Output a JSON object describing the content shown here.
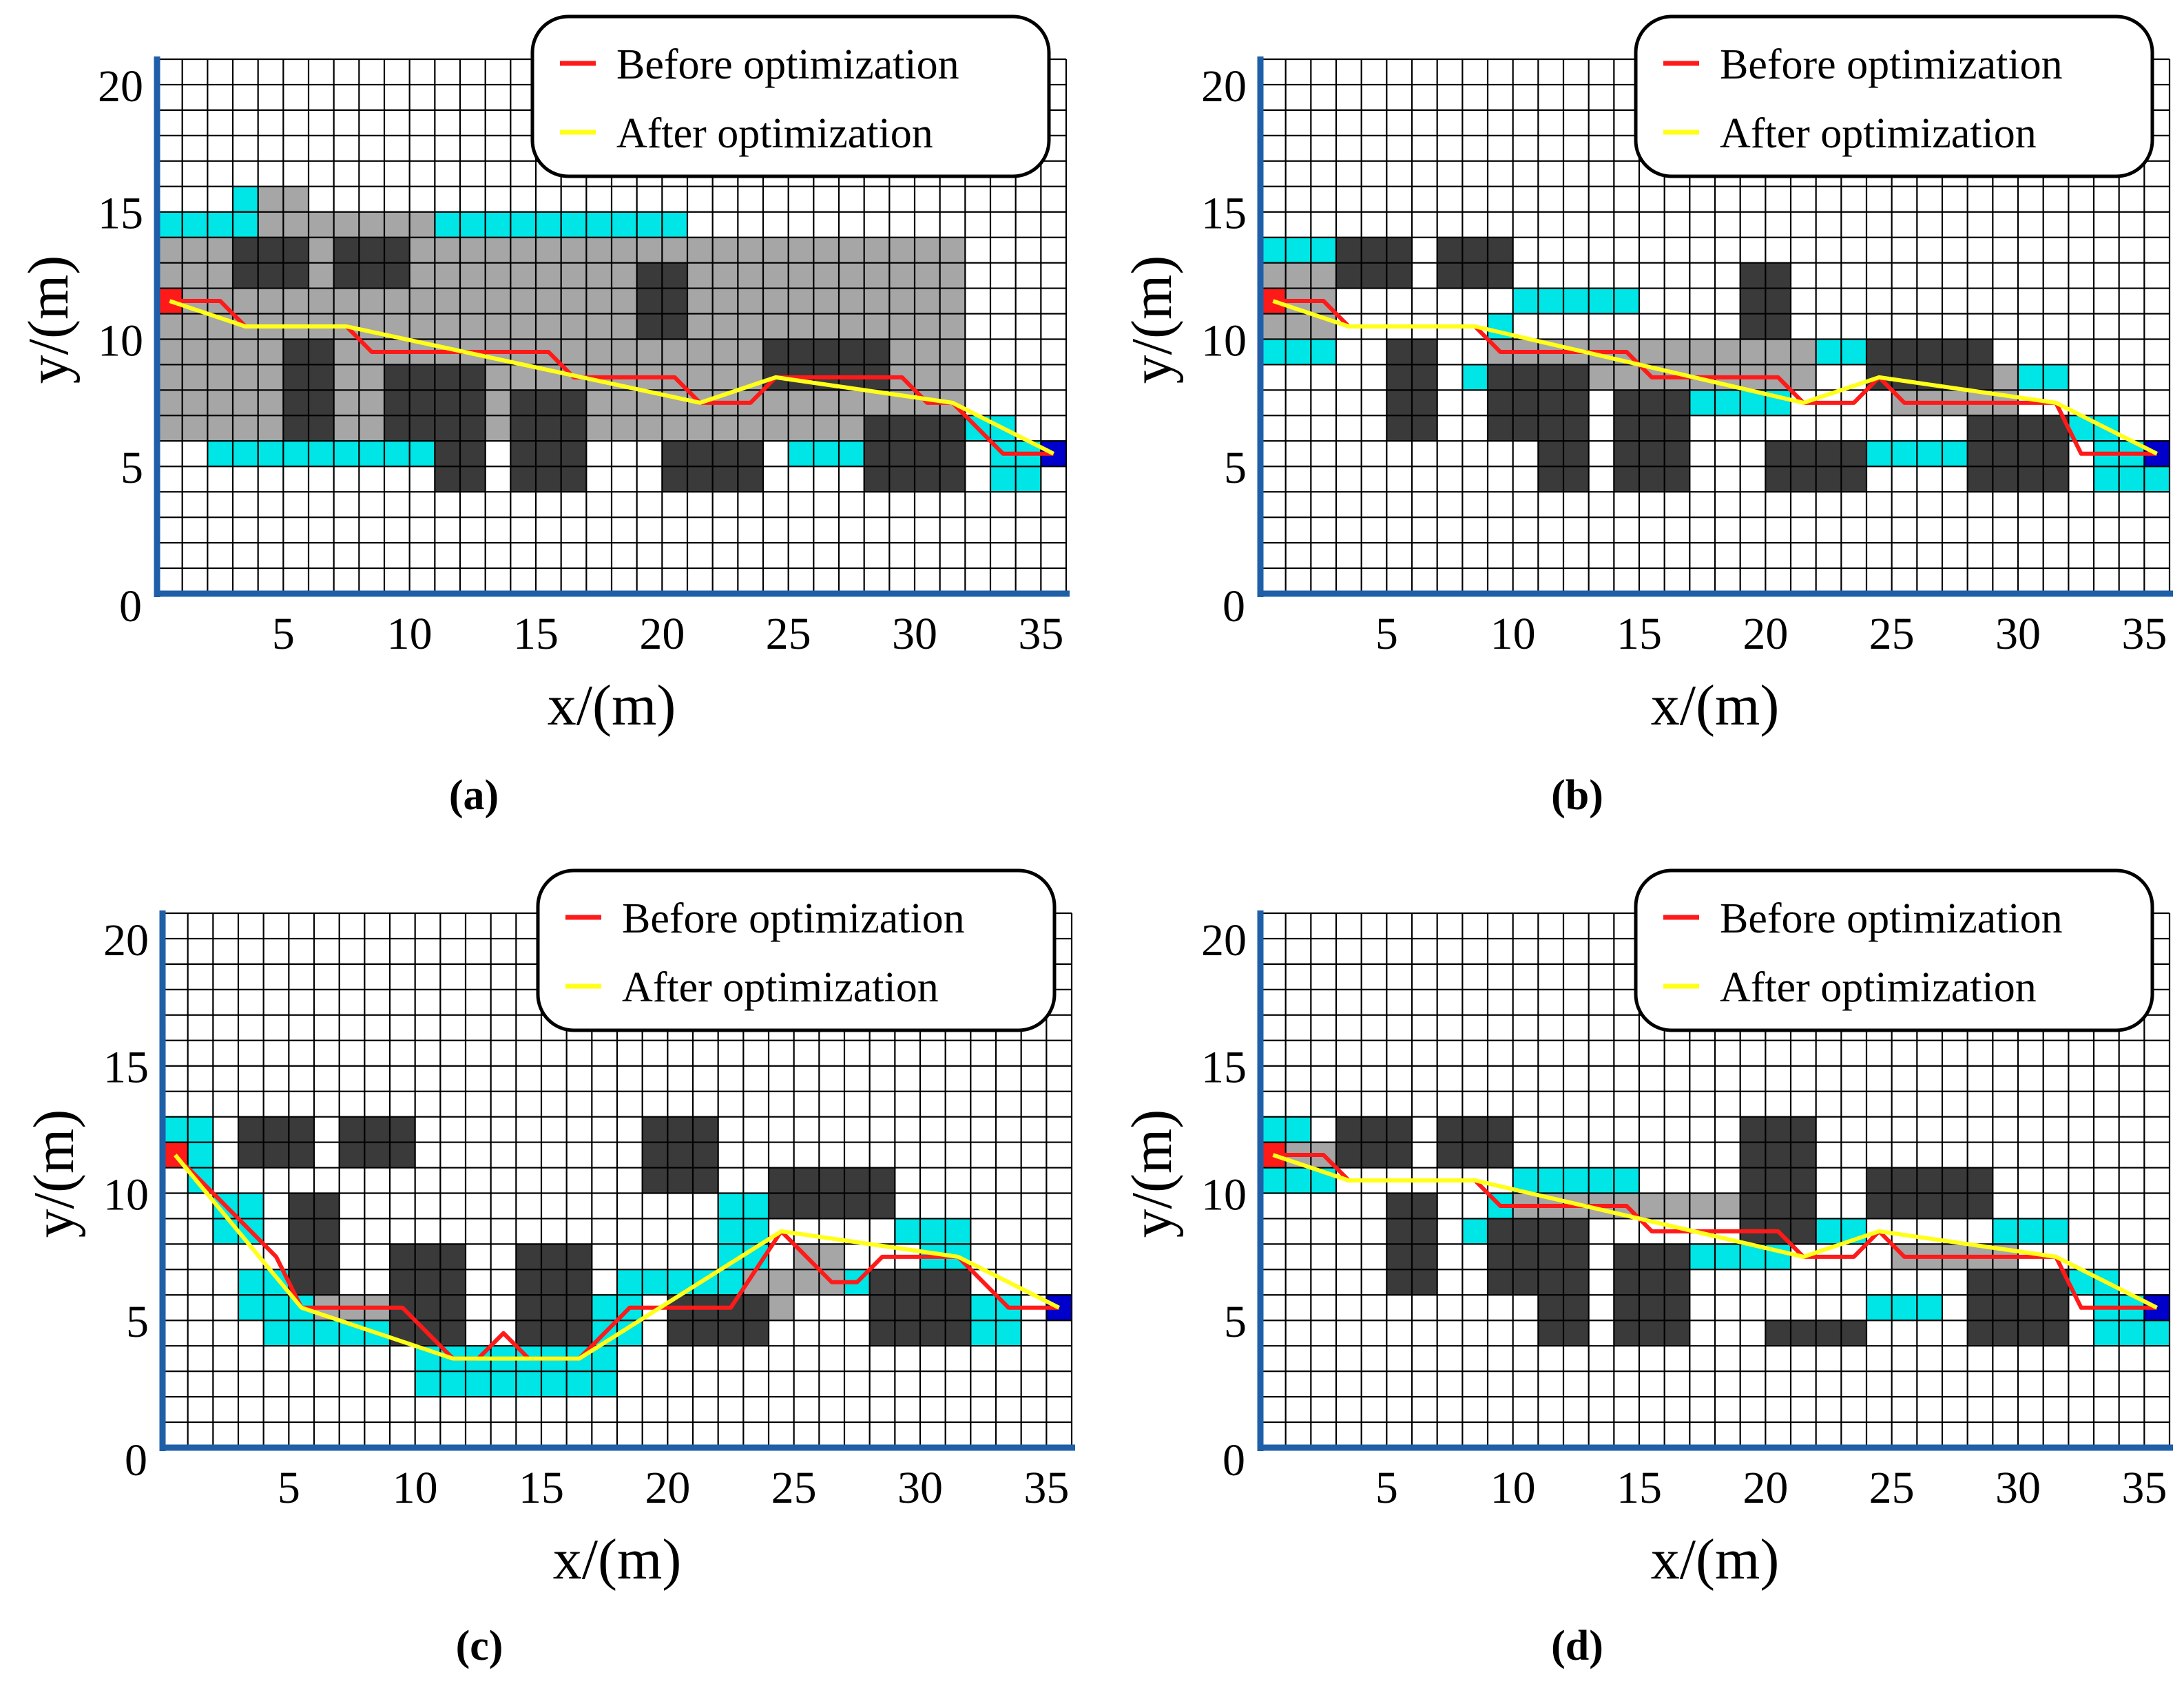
{
  "legend": {
    "before": "Before optimization",
    "after": "After optimization"
  },
  "colors": {
    "obstacle": "#3a3a3a",
    "explored": "#a6a6a6",
    "frontier": "#00e5e5",
    "grid": "#000000",
    "axis": "#1f5fa8",
    "before": "#ff1a1a",
    "after": "#ffff1a",
    "start": "#ff1a1a",
    "goal": "#0000cc"
  },
  "chart_data": [
    {
      "type": "grid-path",
      "label": "(a)",
      "xlabel": "x/(m)",
      "ylabel": "y/(m)",
      "xlim": [
        0,
        36
      ],
      "ylim": [
        0,
        21
      ],
      "xticks": [
        5,
        10,
        15,
        20,
        25,
        30,
        35
      ],
      "yticks": [
        5,
        10,
        15,
        20
      ],
      "origin_label": "0",
      "obstacles": [
        [
          3,
          12,
          3,
          2
        ],
        [
          7,
          12,
          3,
          2
        ],
        [
          5,
          6,
          2,
          4
        ],
        [
          9,
          6,
          4,
          3
        ],
        [
          11,
          4,
          2,
          2
        ],
        [
          14,
          4,
          3,
          4
        ],
        [
          19,
          10,
          2,
          3
        ],
        [
          20,
          4,
          4,
          2
        ],
        [
          24,
          8,
          5,
          2
        ],
        [
          28,
          4,
          4,
          3
        ]
      ],
      "explored": [
        [
          0,
          6,
          32,
          8
        ],
        [
          4,
          14,
          7,
          1
        ],
        [
          4,
          15,
          2,
          1
        ]
      ],
      "frontier": [
        [
          0,
          14,
          1,
          1
        ],
        [
          1,
          14,
          20,
          1
        ],
        [
          3,
          15,
          3,
          1
        ],
        [
          2,
          5,
          10,
          1
        ],
        [
          0,
          7,
          2,
          1
        ],
        [
          21,
          12,
          3,
          1
        ],
        [
          23,
          9,
          2,
          3
        ],
        [
          29,
          9,
          3,
          1
        ],
        [
          30,
          7,
          2,
          2
        ],
        [
          32,
          6,
          2,
          1
        ],
        [
          33,
          4,
          2,
          2
        ],
        [
          25,
          5,
          3,
          1
        ]
      ],
      "start": [
        0,
        11.5
      ],
      "goal": [
        35.5,
        5.5
      ],
      "before": [
        [
          0.5,
          11.5
        ],
        [
          2.5,
          11.5
        ],
        [
          3.5,
          10.5
        ],
        [
          7.5,
          10.5
        ],
        [
          8.5,
          9.5
        ],
        [
          15.5,
          9.5
        ],
        [
          16.5,
          8.5
        ],
        [
          20.5,
          8.5
        ],
        [
          21.5,
          7.5
        ],
        [
          23.5,
          7.5
        ],
        [
          24.5,
          8.5
        ],
        [
          29.5,
          8.5
        ],
        [
          30.5,
          7.5
        ],
        [
          31.5,
          7.5
        ],
        [
          33.5,
          5.5
        ],
        [
          35.5,
          5.5
        ]
      ],
      "after": [
        [
          0.5,
          11.5
        ],
        [
          3.5,
          10.5
        ],
        [
          7.5,
          10.5
        ],
        [
          21.5,
          7.5
        ],
        [
          24.5,
          8.5
        ],
        [
          31.5,
          7.5
        ],
        [
          35.5,
          5.5
        ]
      ]
    },
    {
      "type": "grid-path",
      "label": "(b)",
      "xlabel": "x/(m)",
      "ylabel": "y/(m)",
      "xlim": [
        0,
        36
      ],
      "ylim": [
        0,
        21
      ],
      "xticks": [
        5,
        10,
        15,
        20,
        25,
        30,
        35
      ],
      "yticks": [
        5,
        10,
        15,
        20
      ],
      "origin_label": "0",
      "obstacles": [
        [
          3,
          12,
          3,
          2
        ],
        [
          7,
          12,
          3,
          2
        ],
        [
          5,
          6,
          2,
          4
        ],
        [
          9,
          6,
          4,
          3
        ],
        [
          11,
          4,
          2,
          2
        ],
        [
          14,
          4,
          3,
          4
        ],
        [
          19,
          10,
          2,
          3
        ],
        [
          20,
          4,
          4,
          2
        ],
        [
          24,
          8,
          5,
          2
        ],
        [
          28,
          4,
          4,
          3
        ]
      ],
      "explored": [
        [
          0,
          10,
          3,
          3
        ],
        [
          9,
          8,
          13,
          2
        ],
        [
          25,
          7,
          5,
          2
        ]
      ],
      "frontier": [
        [
          0,
          13,
          3,
          1
        ],
        [
          0,
          9,
          3,
          1
        ],
        [
          10,
          11,
          5,
          1
        ],
        [
          9,
          10,
          1,
          1
        ],
        [
          8,
          8,
          1,
          1
        ],
        [
          17,
          7,
          4,
          1
        ],
        [
          22,
          9,
          2,
          1
        ],
        [
          23,
          5,
          2,
          1
        ],
        [
          29,
          8,
          3,
          1
        ],
        [
          32,
          6,
          2,
          1
        ],
        [
          33,
          4,
          3,
          2
        ],
        [
          25,
          5,
          3,
          1
        ]
      ],
      "start": [
        0,
        11.5
      ],
      "goal": [
        35.5,
        5.5
      ],
      "before": [
        [
          0.5,
          11.5
        ],
        [
          2.5,
          11.5
        ],
        [
          3.5,
          10.5
        ],
        [
          8.5,
          10.5
        ],
        [
          9.5,
          9.5
        ],
        [
          14.5,
          9.5
        ],
        [
          15.5,
          8.5
        ],
        [
          20.5,
          8.5
        ],
        [
          21.5,
          7.5
        ],
        [
          23.5,
          7.5
        ],
        [
          24.5,
          8.5
        ],
        [
          25.5,
          7.5
        ],
        [
          31.5,
          7.5
        ],
        [
          32.5,
          5.5
        ],
        [
          35.5,
          5.5
        ]
      ],
      "after": [
        [
          0.5,
          11.5
        ],
        [
          3.5,
          10.5
        ],
        [
          8.5,
          10.5
        ],
        [
          21.5,
          7.5
        ],
        [
          24.5,
          8.5
        ],
        [
          31.5,
          7.5
        ],
        [
          35.5,
          5.5
        ]
      ]
    },
    {
      "type": "grid-path",
      "label": "(c)",
      "xlabel": "x/(m)",
      "ylabel": "y/(m)",
      "xlim": [
        0,
        36
      ],
      "ylim": [
        0,
        21
      ],
      "xticks": [
        5,
        10,
        15,
        20,
        25,
        30,
        35
      ],
      "yticks": [
        5,
        10,
        15,
        20
      ],
      "origin_label": "0",
      "obstacles": [
        [
          3,
          11,
          3,
          2
        ],
        [
          7,
          11,
          3,
          2
        ],
        [
          5,
          6,
          2,
          4
        ],
        [
          9,
          4,
          3,
          4
        ],
        [
          14,
          4,
          3,
          4
        ],
        [
          19,
          10,
          3,
          3
        ],
        [
          20,
          4,
          4,
          2
        ],
        [
          24,
          9,
          5,
          2
        ],
        [
          28,
          4,
          4,
          3
        ]
      ],
      "explored": [
        [
          6,
          5,
          4,
          1
        ],
        [
          23,
          5,
          2,
          2
        ],
        [
          25,
          6,
          2,
          2
        ]
      ],
      "frontier": [
        [
          0,
          12,
          2,
          1
        ],
        [
          1,
          10,
          1,
          2
        ],
        [
          2,
          8,
          2,
          2
        ],
        [
          3,
          5,
          3,
          2
        ],
        [
          4,
          4,
          7,
          1
        ],
        [
          10,
          2,
          8,
          2
        ],
        [
          17,
          4,
          2,
          2
        ],
        [
          18,
          6,
          6,
          1
        ],
        [
          22,
          7,
          2,
          3
        ],
        [
          25,
          6,
          3,
          1
        ],
        [
          29,
          8,
          3,
          1
        ],
        [
          30,
          6,
          2,
          2
        ],
        [
          32,
          4,
          2,
          2
        ]
      ],
      "start": [
        0,
        11.5
      ],
      "goal": [
        35.5,
        5.5
      ],
      "before": [
        [
          0.5,
          11.5
        ],
        [
          4.5,
          7.5
        ],
        [
          5.5,
          5.5
        ],
        [
          9.5,
          5.5
        ],
        [
          11.5,
          3.5
        ],
        [
          12.5,
          3.5
        ],
        [
          13.5,
          4.5
        ],
        [
          14.5,
          3.5
        ],
        [
          16.5,
          3.5
        ],
        [
          18.5,
          5.5
        ],
        [
          22.5,
          5.5
        ],
        [
          24.5,
          8.5
        ],
        [
          25.5,
          7.5
        ],
        [
          26.5,
          6.5
        ],
        [
          27.5,
          6.5
        ],
        [
          28.5,
          7.5
        ],
        [
          31.5,
          7.5
        ],
        [
          33.5,
          5.5
        ],
        [
          35.5,
          5.5
        ]
      ],
      "after": [
        [
          0.5,
          11.5
        ],
        [
          5.5,
          5.5
        ],
        [
          11.5,
          3.5
        ],
        [
          16.5,
          3.5
        ],
        [
          24.5,
          8.5
        ],
        [
          31.5,
          7.5
        ],
        [
          35.5,
          5.5
        ]
      ]
    },
    {
      "type": "grid-path",
      "label": "(d)",
      "xlabel": "x/(m)",
      "ylabel": "y/(m)",
      "xlim": [
        0,
        36
      ],
      "ylim": [
        0,
        21
      ],
      "xticks": [
        5,
        10,
        15,
        20,
        25,
        30,
        35
      ],
      "yticks": [
        5,
        10,
        15,
        20
      ],
      "origin_label": "0",
      "obstacles": [
        [
          3,
          11,
          3,
          2
        ],
        [
          7,
          11,
          3,
          2
        ],
        [
          5,
          6,
          2,
          4
        ],
        [
          9,
          6,
          4,
          3
        ],
        [
          11,
          4,
          2,
          2
        ],
        [
          14,
          4,
          3,
          4
        ],
        [
          19,
          8,
          3,
          5
        ],
        [
          20,
          4,
          4,
          1
        ],
        [
          24,
          9,
          5,
          2
        ],
        [
          28,
          4,
          4,
          3
        ]
      ],
      "explored": [
        [
          0,
          11,
          3,
          1
        ],
        [
          10,
          9,
          12,
          1
        ],
        [
          25,
          7,
          5,
          1
        ]
      ],
      "frontier": [
        [
          0,
          12,
          2,
          1
        ],
        [
          0,
          10,
          3,
          1
        ],
        [
          9,
          9,
          1,
          1
        ],
        [
          8,
          8,
          1,
          1
        ],
        [
          10,
          10,
          5,
          1
        ],
        [
          15,
          9,
          4,
          1
        ],
        [
          17,
          7,
          4,
          1
        ],
        [
          22,
          8,
          2,
          1
        ],
        [
          29,
          8,
          3,
          1
        ],
        [
          24,
          5,
          3,
          1
        ],
        [
          32,
          6,
          2,
          1
        ],
        [
          33,
          4,
          3,
          2
        ]
      ],
      "start": [
        0,
        11.5
      ],
      "goal": [
        35.5,
        5.5
      ],
      "before": [
        [
          0.5,
          11.5
        ],
        [
          2.5,
          11.5
        ],
        [
          3.5,
          10.5
        ],
        [
          8.5,
          10.5
        ],
        [
          9.5,
          9.5
        ],
        [
          14.5,
          9.5
        ],
        [
          15.5,
          8.5
        ],
        [
          20.5,
          8.5
        ],
        [
          21.5,
          7.5
        ],
        [
          23.5,
          7.5
        ],
        [
          24.5,
          8.5
        ],
        [
          25.5,
          7.5
        ],
        [
          31.5,
          7.5
        ],
        [
          32.5,
          5.5
        ],
        [
          35.5,
          5.5
        ]
      ],
      "after": [
        [
          0.5,
          11.5
        ],
        [
          3.5,
          10.5
        ],
        [
          8.5,
          10.5
        ],
        [
          21.5,
          7.5
        ],
        [
          24.5,
          8.5
        ],
        [
          31.5,
          7.5
        ],
        [
          35.5,
          5.5
        ]
      ]
    }
  ]
}
